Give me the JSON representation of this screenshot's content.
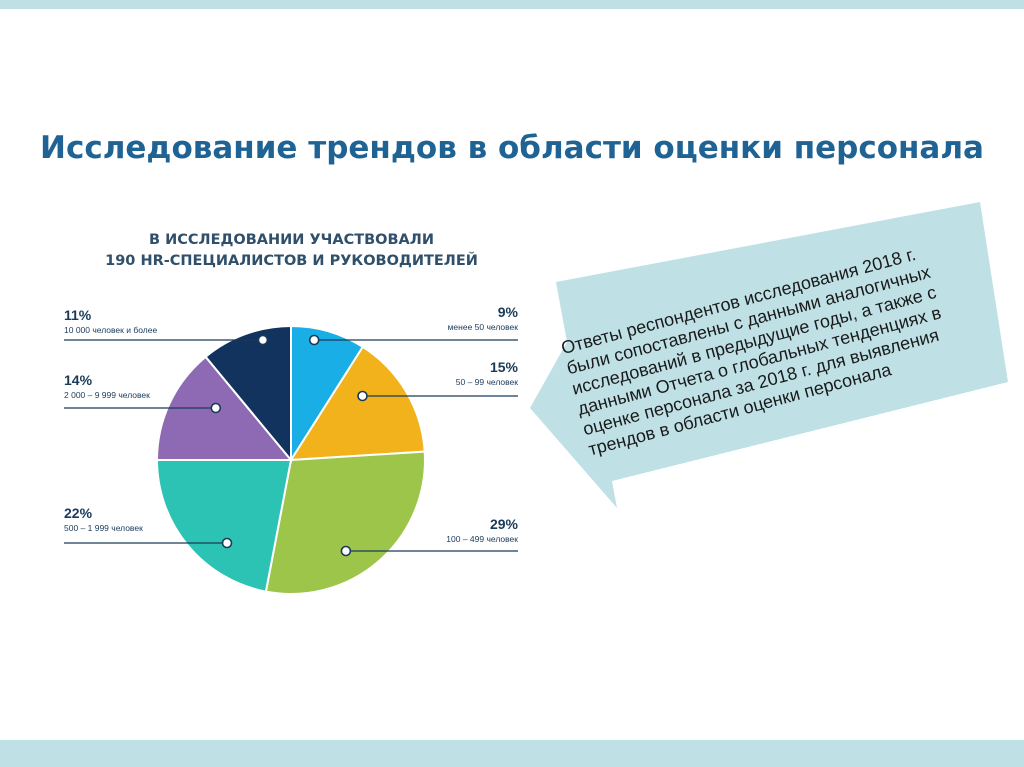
{
  "slide": {
    "title": "Исследование трендов в области оценки персонала"
  },
  "chart_data": {
    "type": "pie",
    "title_lines": [
      "В ИССЛЕДОВАНИИ УЧАСТВОВАЛИ",
      "190 HR-СПЕЦИАЛИСТОВ И РУКОВОДИТЕЛЕЙ"
    ],
    "slices": [
      {
        "pct_label": "9%",
        "caption": "менее 50 человек",
        "value": 9,
        "color": "#19aee6"
      },
      {
        "pct_label": "15%",
        "caption": "50 – 99 человек",
        "value": 15,
        "color": "#f2b21b"
      },
      {
        "pct_label": "29%",
        "caption": "100 – 499 человек",
        "value": 29,
        "color": "#9cc54a"
      },
      {
        "pct_label": "22%",
        "caption": "500 – 1 999 человек",
        "value": 22,
        "color": "#2dc3b4"
      },
      {
        "pct_label": "14%",
        "caption": "2 000 – 9 999 человек",
        "value": 14,
        "color": "#8e6ab4"
      },
      {
        "pct_label": "11%",
        "caption": "10 000 человек и более",
        "value": 11,
        "color": "#12335d"
      }
    ]
  },
  "callout": {
    "lines": [
      "Ответы респондентов исследования 2018 г.",
      "были сопоставлены с данными аналогичных",
      "исследований в предыдущие годы, а также с",
      "данными Отчета о глобальных тенденциях в",
      "оценке персонала за 2018 г. для выявления",
      "трендов в области оценки персонала"
    ],
    "color": "#bfe1e6"
  }
}
